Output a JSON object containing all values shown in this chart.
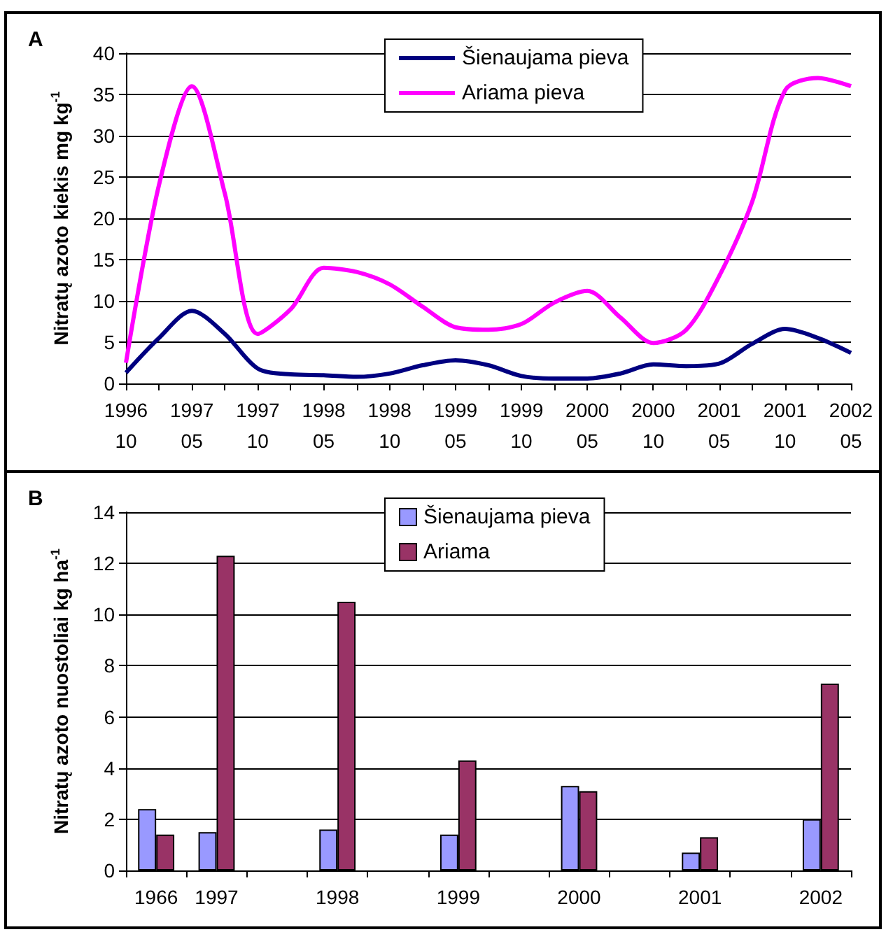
{
  "chart_data": [
    {
      "type": "line",
      "title": "A",
      "ylabel": "Nitratų azoto kiekis mg kg$^{-1}$",
      "categories": [
        "1996\n10",
        null,
        "1997\n05",
        null,
        "1997\n10",
        null,
        "1998\n05",
        null,
        "1998\n10",
        null,
        "1999\n05",
        null,
        "1999\n10",
        null,
        "2000\n05",
        null,
        "2000\n10",
        null,
        "2001\n05",
        null,
        "2001\n10",
        null,
        "2002\n05"
      ],
      "ylim": [
        0,
        40
      ],
      "yticks": [
        0,
        5,
        10,
        15,
        20,
        25,
        30,
        35,
        40
      ],
      "grid": "y",
      "legend": "top center",
      "marker": "none",
      "line_style": "solid",
      "series": [
        {
          "name": "Šienaujama pieva",
          "color": "#000080",
          "values": [
            1.3,
            5.5,
            8.8,
            6,
            1.8,
            1.1,
            1.0,
            0.8,
            1.2,
            2.2,
            2.8,
            2.2,
            0.9,
            0.6,
            0.6,
            1.2,
            2.3,
            2.1,
            2.4,
            4.8,
            6.6,
            5.5,
            3.7
          ]
        },
        {
          "name": "Ariama pieva",
          "color": "#ff00ff",
          "values": [
            2.5,
            24,
            36,
            23,
            6,
            9,
            14,
            13.5,
            12,
            9.3,
            6.8,
            6.5,
            7.2,
            9.8,
            11.2,
            8,
            4.9,
            6.5,
            13,
            22,
            35.5,
            37,
            36
          ]
        }
      ]
    },
    {
      "type": "bar",
      "title": "B",
      "ylabel": "Nitratų azoto nuostoliai kg ha$^{-1}$",
      "categories": [
        "1966",
        "1997",
        null,
        "1998",
        null,
        "1999",
        null,
        "2000",
        null,
        "2001",
        null,
        "2002"
      ],
      "ylim": [
        0,
        14
      ],
      "yticks": [
        0,
        2,
        4,
        6,
        8,
        10,
        12,
        14
      ],
      "grid": "y",
      "legend": "top center",
      "series": [
        {
          "name": "Šienaujama pieva",
          "color": "#9999ff",
          "values": [
            2.4,
            1.5,
            null,
            1.6,
            null,
            1.4,
            null,
            3.3,
            null,
            0.7,
            null,
            2.0
          ]
        },
        {
          "name": "Ariama",
          "color": "#993366",
          "values": [
            1.4,
            12.3,
            null,
            10.5,
            null,
            4.3,
            null,
            3.1,
            null,
            1.3,
            null,
            7.3
          ]
        }
      ]
    }
  ]
}
